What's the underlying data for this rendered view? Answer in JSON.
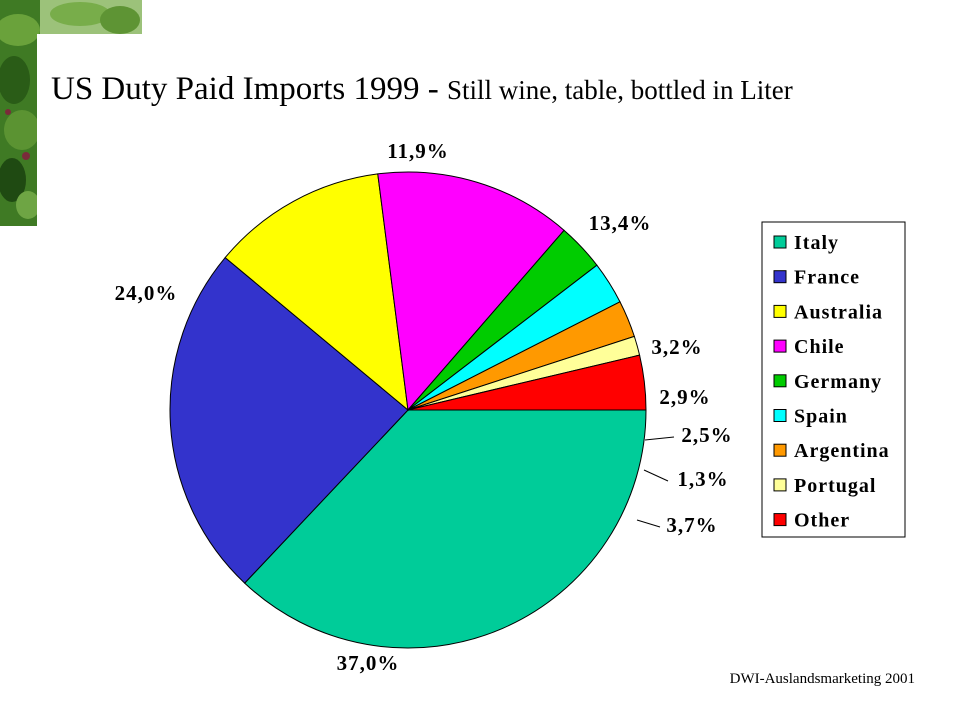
{
  "slide": {
    "title_main": "US Duty Paid Imports 1999 - ",
    "title_sub": "Still wine, table, bottled in Liter",
    "footer": "DWI-Auslandsmarketing 2001"
  },
  "decor": {
    "photo_icon": "vine-leaves-photo",
    "photo_colors": [
      "#2f6a1e",
      "#4d8a2c",
      "#7fae4a",
      "#1f4a14",
      "#a9c98a"
    ]
  },
  "chart_data": {
    "type": "pie",
    "start_angle_deg": 0,
    "direction": "counterclockwise",
    "slices": [
      {
        "name": "Italy",
        "value": 37.0,
        "label": "37,0%",
        "color": "#00cc99"
      },
      {
        "name": "France",
        "value": 24.0,
        "label": "24,0%",
        "color": "#3333cc"
      },
      {
        "name": "Australia",
        "value": 11.9,
        "label": "11,9%",
        "color": "#ffff00"
      },
      {
        "name": "Chile",
        "value": 13.4,
        "label": "13,4%",
        "color": "#ff00ff"
      },
      {
        "name": "Germany",
        "value": 3.2,
        "label": "3,2%",
        "color": "#00cc00"
      },
      {
        "name": "Spain",
        "value": 2.9,
        "label": "2,9%",
        "color": "#00ffff"
      },
      {
        "name": "Argentina",
        "value": 2.5,
        "label": "2,5%",
        "color": "#ff9900"
      },
      {
        "name": "Portugal",
        "value": 1.3,
        "label": "1,3%",
        "color": "#ffff99"
      },
      {
        "name": "Other",
        "value": 3.7,
        "label": "3,7%",
        "color": "#ff0000"
      }
    ],
    "legend_position": "right"
  }
}
